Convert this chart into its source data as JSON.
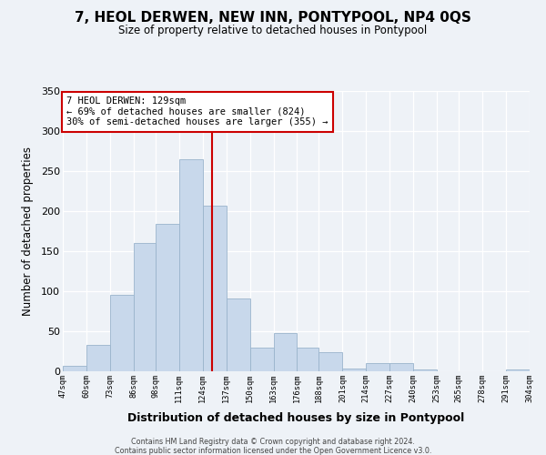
{
  "title": "7, HEOL DERWEN, NEW INN, PONTYPOOL, NP4 0QS",
  "subtitle": "Size of property relative to detached houses in Pontypool",
  "xlabel": "Distribution of detached houses by size in Pontypool",
  "ylabel": "Number of detached properties",
  "bar_color": "#c8d8eb",
  "bar_edge_color": "#9ab4cc",
  "vline_x": 129,
  "vline_color": "#cc0000",
  "annotation_line1": "7 HEOL DERWEN: 129sqm",
  "annotation_line2": "← 69% of detached houses are smaller (824)",
  "annotation_line3": "30% of semi-detached houses are larger (355) →",
  "annotation_box_color": "#cc0000",
  "ylim": [
    0,
    350
  ],
  "yticks": [
    0,
    50,
    100,
    150,
    200,
    250,
    300,
    350
  ],
  "bin_edges": [
    47,
    60,
    73,
    86,
    98,
    111,
    124,
    137,
    150,
    163,
    176,
    188,
    201,
    214,
    227,
    240,
    253,
    265,
    278,
    291,
    304
  ],
  "bin_labels": [
    "47sqm",
    "60sqm",
    "73sqm",
    "86sqm",
    "98sqm",
    "111sqm",
    "124sqm",
    "137sqm",
    "150sqm",
    "163sqm",
    "176sqm",
    "188sqm",
    "201sqm",
    "214sqm",
    "227sqm",
    "240sqm",
    "253sqm",
    "265sqm",
    "278sqm",
    "291sqm",
    "304sqm"
  ],
  "bar_heights": [
    6,
    32,
    95,
    160,
    184,
    265,
    207,
    90,
    29,
    47,
    29,
    23,
    3,
    10,
    10,
    2,
    0,
    0,
    0,
    2
  ],
  "footer1": "Contains HM Land Registry data © Crown copyright and database right 2024.",
  "footer2": "Contains public sector information licensed under the Open Government Licence v3.0.",
  "background_color": "#eef2f7"
}
